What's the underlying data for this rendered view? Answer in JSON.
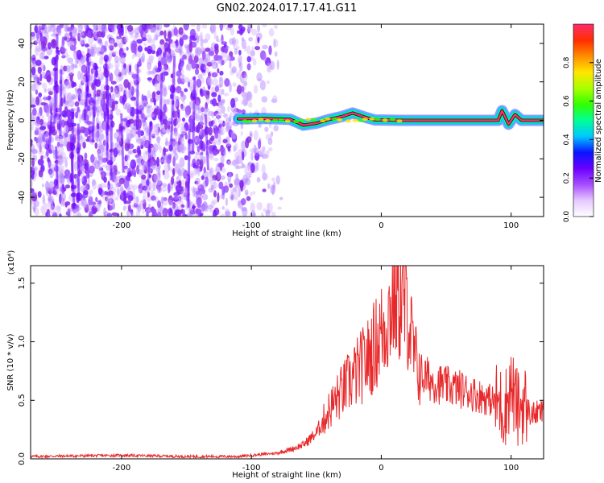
{
  "title": "GN02.2024.017.17.41.G11",
  "chart_data": [
    {
      "type": "heatmap",
      "xlabel": "Height of straight line (km)",
      "ylabel": "Frequency (Hz)",
      "xlim": [
        -270,
        125
      ],
      "ylim": [
        -50,
        50
      ],
      "xticks": [
        -200,
        -100,
        0,
        100
      ],
      "yticks": [
        -40,
        -20,
        0,
        20,
        40
      ],
      "colorbar": {
        "label": "Normalized spectral amplitude",
        "range": [
          0,
          1
        ],
        "ticks": [
          "0.0",
          "0.2",
          "0.4",
          "0.6",
          "0.8"
        ],
        "colors": [
          "#ffffff",
          "#e6c8ff",
          "#a64dff",
          "#6a00ff",
          "#0a14ff",
          "#00c8ff",
          "#00ff96",
          "#32ff00",
          "#aaff00",
          "#ffe600",
          "#ff8c00",
          "#ff2d00",
          "#ff2d6e"
        ]
      },
      "ridge": [
        {
          "x": -110,
          "y": 0.8
        },
        {
          "x": -90,
          "y": 1.0
        },
        {
          "x": -70,
          "y": 0.5
        },
        {
          "x": -60,
          "y": -2.5
        },
        {
          "x": -50,
          "y": -1.5
        },
        {
          "x": -40,
          "y": 0.5
        },
        {
          "x": -30,
          "y": 2.0
        },
        {
          "x": -22,
          "y": 3.8
        },
        {
          "x": -12,
          "y": 1.5
        },
        {
          "x": -5,
          "y": 0.2
        },
        {
          "x": 15,
          "y": 0.0
        },
        {
          "x": 90,
          "y": 0.0
        },
        {
          "x": 93,
          "y": 5.0
        },
        {
          "x": 98,
          "y": -2.0
        },
        {
          "x": 103,
          "y": 3.0
        },
        {
          "x": 108,
          "y": 0.0
        },
        {
          "x": 125,
          "y": 0.0
        }
      ]
    },
    {
      "type": "line",
      "xlabel": "Height of straight line (km)",
      "ylabel": "SNR (10 * v/v)",
      "multiplier": "(x10⁴)",
      "xlim": [
        -270,
        125
      ],
      "ylim": [
        0,
        1.65
      ],
      "xticks": [
        -200,
        -100,
        0,
        100
      ],
      "yticks": [
        "0.0",
        "0.5",
        "1.0",
        "1.5"
      ],
      "series": [
        {
          "color": "#e8282a",
          "x": [
            -270,
            -200,
            -150,
            -110,
            -90,
            -80,
            -70,
            -60,
            -50,
            -40,
            -30,
            -20,
            -10,
            0,
            5,
            10,
            15,
            20,
            25,
            30,
            40,
            50,
            60,
            70,
            80,
            90,
            95,
            100,
            105,
            110,
            115,
            125
          ],
          "y": [
            0.02,
            0.03,
            0.02,
            0.02,
            0.04,
            0.05,
            0.08,
            0.12,
            0.22,
            0.42,
            0.58,
            0.72,
            0.86,
            1.08,
            1.2,
            1.4,
            1.35,
            1.3,
            0.88,
            0.72,
            0.66,
            0.62,
            0.6,
            0.56,
            0.52,
            0.48,
            0.42,
            0.62,
            0.42,
            0.48,
            0.38,
            0.4
          ]
        }
      ]
    }
  ]
}
